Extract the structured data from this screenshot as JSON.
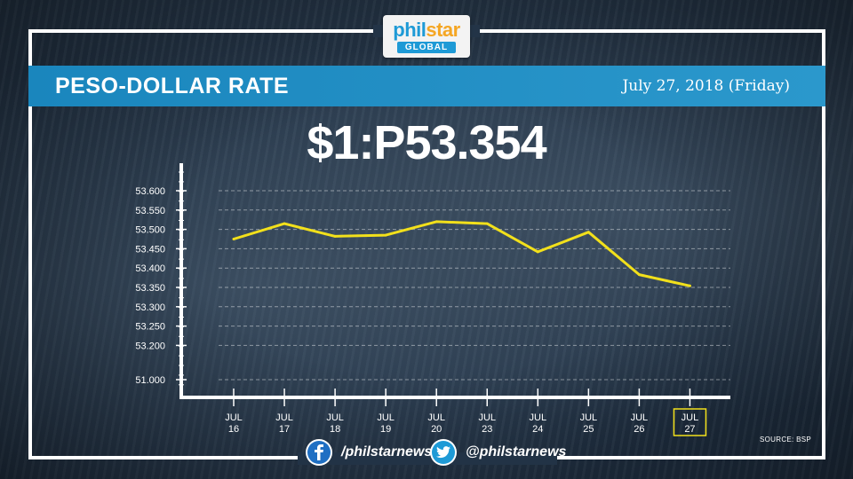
{
  "logo": {
    "main": "phil",
    "star": "star",
    "sub": "GLOBAL"
  },
  "banner": {
    "title": "PESO-DOLLAR RATE",
    "date": "July 27, 2018 (Friday)"
  },
  "headline_rate": "$1:P53.354",
  "source": "SOURCE: BSP",
  "social": {
    "facebook": "/philstarnews",
    "twitter": "@philstarnews"
  },
  "colors": {
    "banner": "#2b98cc",
    "line": "#f2e01b",
    "highlight": "#f2e01b",
    "logo_blue": "#1e9ad6"
  },
  "icons": {
    "facebook": "facebook-icon",
    "twitter": "twitter-icon"
  },
  "chart_data": {
    "type": "line",
    "title": "",
    "xlabel": "",
    "ylabel": "",
    "y_ticks": [
      "53.600",
      "53.550",
      "53.500",
      "53.450",
      "53.400",
      "53.350",
      "53.300",
      "53.250",
      "53.200",
      "51.000"
    ],
    "axis_break": "between 53.200 and 51.000",
    "categories": [
      {
        "month": "JUL",
        "day": "16"
      },
      {
        "month": "JUL",
        "day": "17"
      },
      {
        "month": "JUL",
        "day": "18"
      },
      {
        "month": "JUL",
        "day": "19"
      },
      {
        "month": "JUL",
        "day": "20"
      },
      {
        "month": "JUL",
        "day": "23"
      },
      {
        "month": "JUL",
        "day": "24"
      },
      {
        "month": "JUL",
        "day": "25"
      },
      {
        "month": "JUL",
        "day": "26"
      },
      {
        "month": "JUL",
        "day": "27"
      }
    ],
    "series": [
      {
        "values": [
          53.475,
          53.515,
          53.482,
          53.485,
          53.52,
          53.515,
          53.442,
          53.493,
          53.383,
          53.354
        ]
      }
    ],
    "highlighted_category": 9,
    "grid": true
  }
}
